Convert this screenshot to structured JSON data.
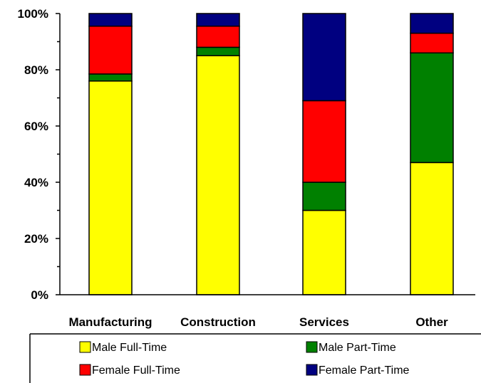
{
  "chart_data": {
    "type": "bar",
    "stacked": true,
    "categories": [
      "Manufacturing",
      "Construction",
      "Services",
      "Other"
    ],
    "series": [
      {
        "name": "Male Full-Time",
        "color": "#ffff00",
        "values": [
          76,
          85,
          30,
          47
        ]
      },
      {
        "name": "Male Part-Time",
        "color": "#008000",
        "values": [
          2.5,
          3,
          10,
          39
        ]
      },
      {
        "name": "Female Full-Time",
        "color": "#ff0000",
        "values": [
          17,
          7.5,
          29,
          7
        ]
      },
      {
        "name": "Female Part-Time",
        "color": "#000080",
        "values": [
          4.5,
          4.5,
          31,
          7
        ]
      }
    ],
    "y_ticks": [
      "0%",
      "20%",
      "40%",
      "60%",
      "80%",
      "100%"
    ],
    "ylim": [
      0,
      100
    ],
    "grid": false,
    "legend_position": "bottom",
    "legend_rows": [
      [
        "Male Full-Time",
        "Male Part-Time"
      ],
      [
        "Female Full-Time",
        "Female Part-Time"
      ]
    ]
  }
}
